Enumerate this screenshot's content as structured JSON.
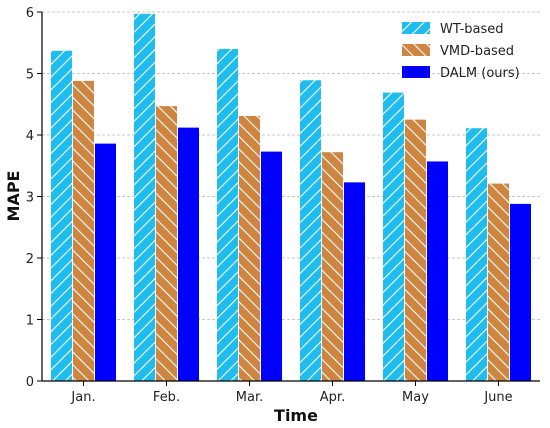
{
  "chart_data": {
    "type": "bar",
    "title": "",
    "xlabel": "Time",
    "ylabel": "MAPE",
    "categories": [
      "Jan.",
      "Feb.",
      "Mar.",
      "Apr.",
      "May",
      "June"
    ],
    "ylim": [
      0,
      6
    ],
    "yticks": [
      0,
      1,
      2,
      3,
      4,
      5,
      6
    ],
    "grid": "horizontal, dashed",
    "legend_position": "top-right",
    "series": [
      {
        "name": "WT-based",
        "values": [
          5.37,
          5.97,
          5.4,
          4.89,
          4.69,
          4.11
        ],
        "color": "#1EBDEE",
        "hatch": "diagonal"
      },
      {
        "name": "VMD-based",
        "values": [
          4.88,
          4.47,
          4.31,
          3.72,
          4.25,
          3.21
        ],
        "color": "#CD853F",
        "hatch": "back-diagonal"
      },
      {
        "name": "DALM (ours)",
        "values": [
          3.86,
          4.12,
          3.73,
          3.23,
          3.57,
          2.88
        ],
        "color": "#0000FF",
        "hatch": "none"
      }
    ]
  }
}
